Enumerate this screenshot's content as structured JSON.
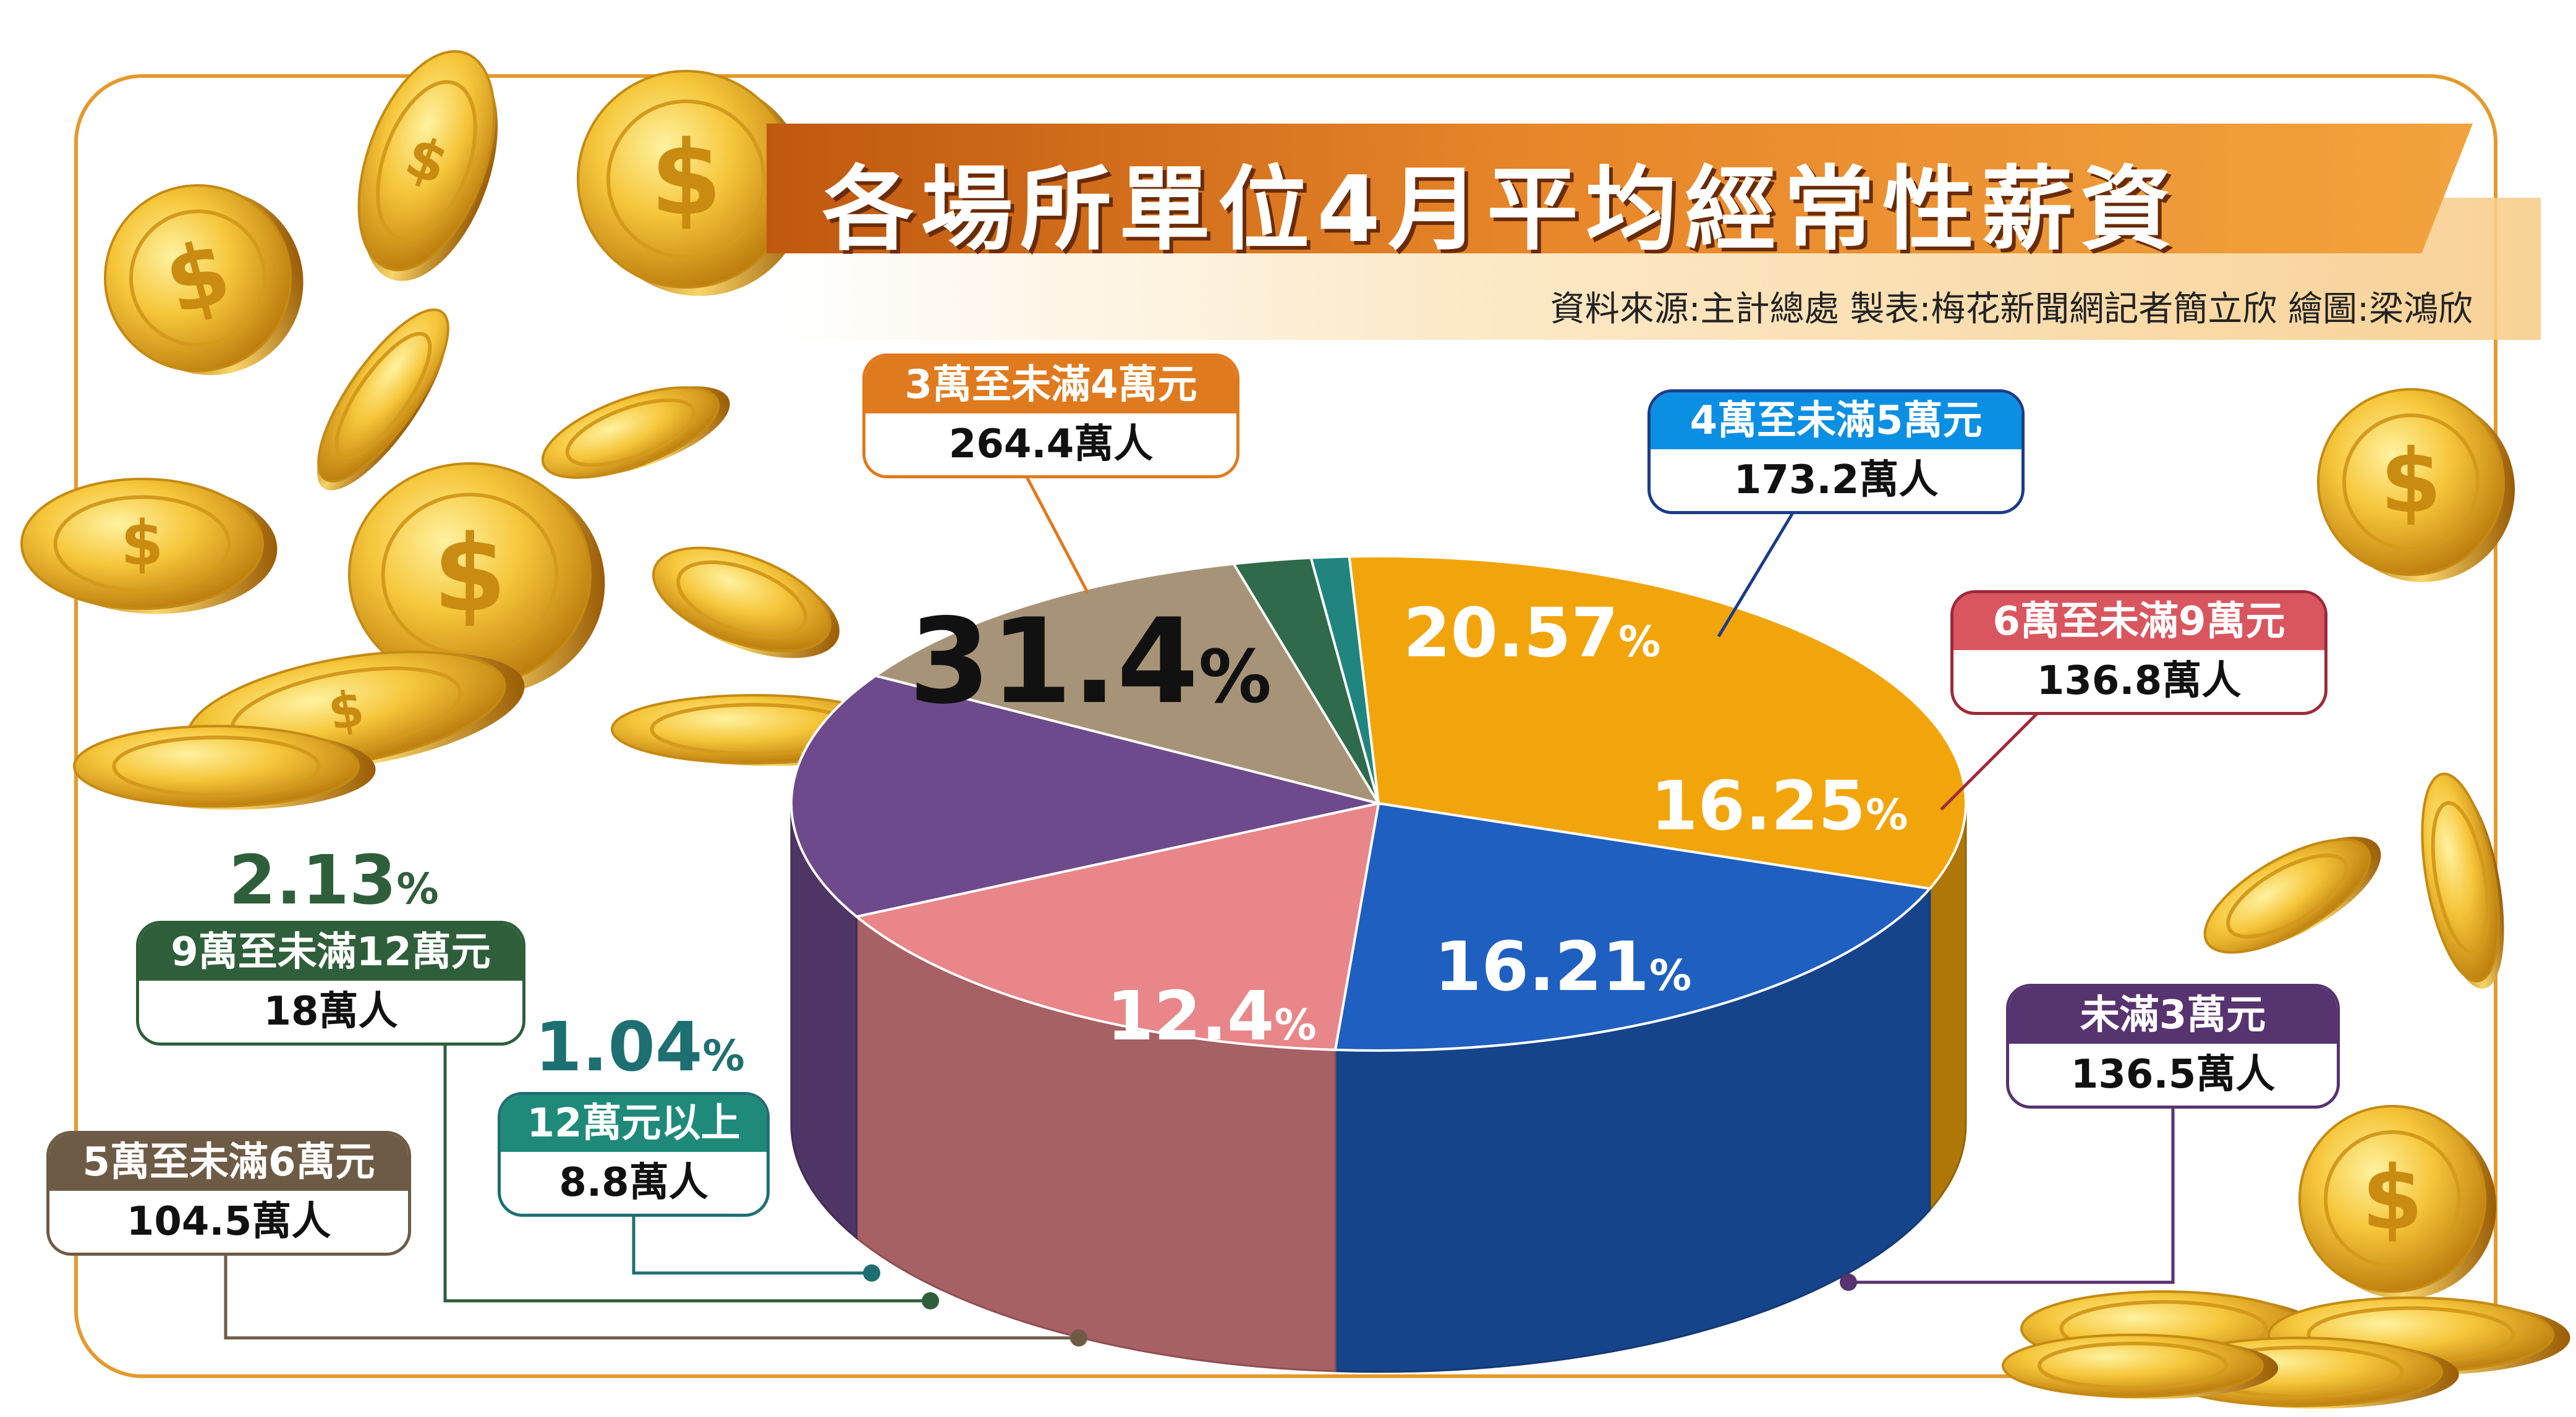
{
  "header": {
    "title": "各場所單位4月平均經常性薪資",
    "source": "資料來源:主計總處 製表:梅花新聞網記者簡立欣 繪圖:梁鴻欣"
  },
  "chart_data": {
    "type": "pie",
    "title": "各場所單位4月平均經常性薪資",
    "slices": [
      {
        "label": "3萬至未滿4萬元",
        "people": "264.4萬人",
        "percent": 31.4,
        "percent_text": "31.4",
        "color": "#f2a50b"
      },
      {
        "label": "4萬至未滿5萬元",
        "people": "173.2萬人",
        "percent": 20.57,
        "percent_text": "20.57",
        "color": "#1f5fc0"
      },
      {
        "label": "6萬至未滿9萬元",
        "people": "136.8萬人",
        "percent": 16.25,
        "percent_text": "16.25",
        "color": "#e8868a"
      },
      {
        "label": "未滿3萬元",
        "people": "136.5萬人",
        "percent": 16.21,
        "percent_text": "16.21",
        "color": "#6e4a8c"
      },
      {
        "label": "5萬至未滿6萬元",
        "people": "104.5萬人",
        "percent": 12.4,
        "percent_text": "12.4",
        "color": "#a79478"
      },
      {
        "label": "9萬至未滿12萬元",
        "people": "18萬人",
        "percent": 2.13,
        "percent_text": "2.13",
        "color": "#2f6a4a"
      },
      {
        "label": "12萬元以上",
        "people": "8.8萬人",
        "percent": 1.04,
        "percent_text": "1.04",
        "color": "#21857f"
      }
    ],
    "percent_symbol": "%"
  },
  "colors": {
    "frame": "#e49a2c",
    "banner": "#d8731c",
    "coin": "#f1c232"
  },
  "icons": [
    "gold-dollar-coin-icon"
  ]
}
